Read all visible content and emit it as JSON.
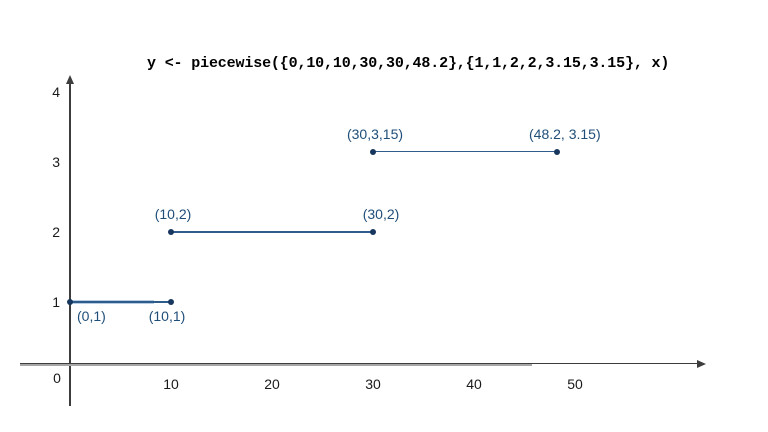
{
  "chart_data": {
    "type": "line",
    "subtype": "piecewise-constant-step-function",
    "title": "y <- piecewise({0,10,10,30,30,48.2},{1,1,2,2,3.15,3.15}, x)",
    "xlabel": "",
    "ylabel": "",
    "xlim": [
      0,
      63
    ],
    "ylim": [
      0,
      4.3
    ],
    "grid": false,
    "legend": false,
    "x_ticks": [
      10,
      20,
      30,
      40,
      50
    ],
    "y_ticks": [
      1,
      2,
      3,
      4
    ],
    "origin_label": "0",
    "segments": [
      {
        "x1": 0,
        "y1": 1,
        "x2": 10,
        "y2": 1,
        "start_label": "(0,1)",
        "end_label": "(10,1)",
        "labels_position": "below",
        "highlighted": true
      },
      {
        "x1": 10,
        "y1": 2,
        "x2": 30,
        "y2": 2,
        "start_label": "(10,2)",
        "end_label": "(30,2)",
        "labels_position": "above",
        "highlighted": false
      },
      {
        "x1": 30,
        "y1": 3.15,
        "x2": 48.2,
        "y2": 3.15,
        "start_label": "(30,3,15)",
        "end_label": "(48.2, 3.15)",
        "labels_position": "above",
        "highlighted": false
      }
    ],
    "colors": {
      "segment_line": "#2e5c8a",
      "point": "#17375e",
      "point_label": "#1f4e79",
      "axis": "#3d3d3d",
      "x_axis_gray": "#a6a6a6",
      "highlight": "#b8cce4",
      "tick_label": "#1a1a1a",
      "title": "#000000",
      "background": "#ffffff"
    }
  }
}
